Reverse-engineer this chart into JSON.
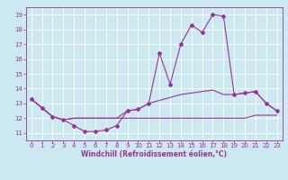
{
  "title": "",
  "xlabel": "Windchill (Refroidissement éolien,°C)",
  "ylabel": "",
  "bg_color": "#cce8f0",
  "line_color": "#993399",
  "grid_color": "#ffffff",
  "x_values": [
    0,
    1,
    2,
    3,
    4,
    5,
    6,
    7,
    8,
    9,
    10,
    11,
    12,
    13,
    14,
    15,
    16,
    17,
    18,
    19,
    20,
    21,
    22,
    23
  ],
  "series1": [
    13.3,
    12.7,
    12.1,
    11.9,
    11.5,
    11.1,
    11.1,
    11.2,
    11.5,
    12.5,
    12.6,
    13.0,
    16.4,
    14.3,
    17.0,
    18.3,
    17.8,
    19.0,
    18.9,
    13.6,
    13.7,
    13.8,
    13.0,
    12.5
  ],
  "series2": [
    13.3,
    12.7,
    12.1,
    11.9,
    12.0,
    12.0,
    12.0,
    12.0,
    12.0,
    12.0,
    12.0,
    12.0,
    12.0,
    12.0,
    12.0,
    12.0,
    12.0,
    12.0,
    12.0,
    12.0,
    12.0,
    12.2,
    12.2,
    12.2
  ],
  "series3": [
    13.3,
    12.7,
    12.1,
    11.9,
    12.0,
    12.0,
    12.0,
    12.0,
    12.0,
    12.5,
    12.6,
    13.0,
    13.2,
    13.4,
    13.6,
    13.7,
    13.8,
    13.9,
    13.6,
    13.6,
    13.7,
    13.8,
    13.0,
    12.5
  ],
  "xlim": [
    -0.5,
    23.5
  ],
  "ylim": [
    10.5,
    19.5
  ],
  "yticks": [
    11,
    12,
    13,
    14,
    15,
    16,
    17,
    18,
    19
  ],
  "xticks": [
    0,
    1,
    2,
    3,
    4,
    5,
    6,
    7,
    8,
    9,
    10,
    11,
    12,
    13,
    14,
    15,
    16,
    17,
    18,
    19,
    20,
    21,
    22,
    23
  ],
  "marker": "D",
  "markersize": 2.0,
  "linewidth": 0.8,
  "xlabel_fontsize": 5.5,
  "tick_fontsize": 5.0
}
